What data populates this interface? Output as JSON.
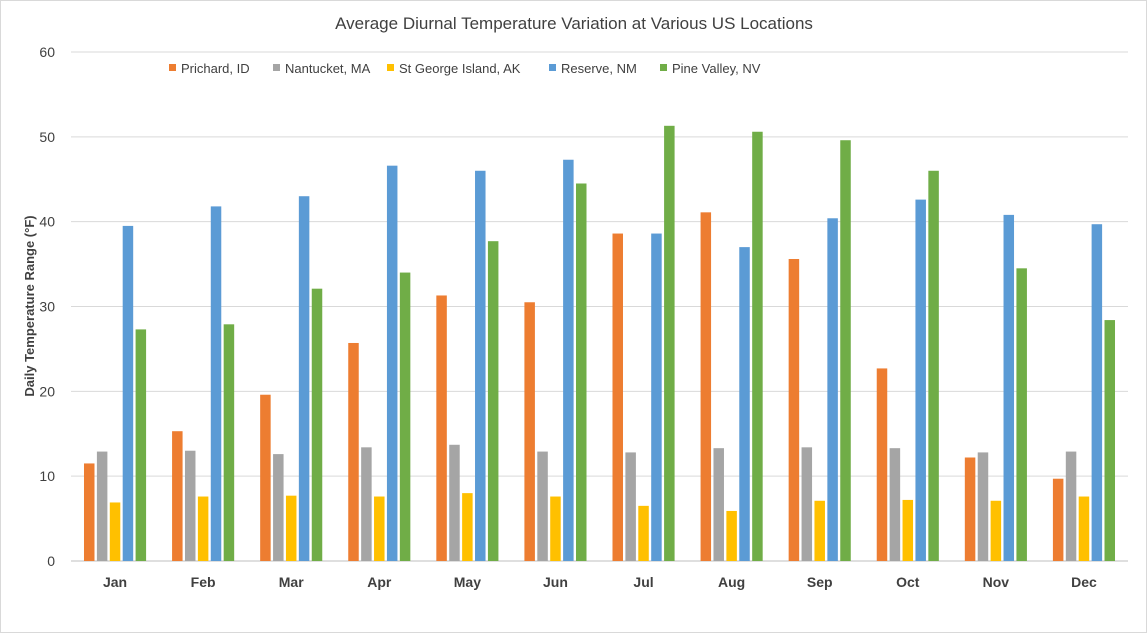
{
  "chart_data": {
    "type": "bar",
    "title": "Average Diurnal Temperature Variation at Various US Locations",
    "xlabel": "",
    "ylabel": "Daily Temperature Range (°F)",
    "ylim": [
      0,
      60
    ],
    "yticks": [
      0,
      10,
      20,
      30,
      40,
      50,
      60
    ],
    "grid": true,
    "legend_position": "top",
    "categories": [
      "Jan",
      "Feb",
      "Mar",
      "Apr",
      "May",
      "Jun",
      "Jul",
      "Aug",
      "Sep",
      "Oct",
      "Nov",
      "Dec"
    ],
    "series": [
      {
        "name": "Prichard, ID",
        "color": "#ED7D31",
        "values": [
          11.5,
          15.3,
          19.6,
          25.7,
          31.3,
          30.5,
          38.6,
          41.1,
          35.6,
          22.7,
          12.2,
          9.7
        ]
      },
      {
        "name": "Nantucket, MA",
        "color": "#A5A5A5",
        "values": [
          12.9,
          13.0,
          12.6,
          13.4,
          13.7,
          12.9,
          12.8,
          13.3,
          13.4,
          13.3,
          12.8,
          12.9
        ]
      },
      {
        "name": "St George Island, AK",
        "color": "#FFC000",
        "values": [
          6.9,
          7.6,
          7.7,
          7.6,
          8.0,
          7.6,
          6.5,
          5.9,
          7.1,
          7.2,
          7.1,
          7.6
        ]
      },
      {
        "name": "Reserve, NM",
        "color": "#5B9BD5",
        "values": [
          39.5,
          41.8,
          43.0,
          46.6,
          46.0,
          47.3,
          38.6,
          37.0,
          40.4,
          42.6,
          40.8,
          39.7
        ]
      },
      {
        "name": "Pine Valley, NV",
        "color": "#70AD47",
        "values": [
          27.3,
          27.9,
          32.1,
          34.0,
          37.7,
          44.5,
          51.3,
          50.6,
          49.6,
          46.0,
          34.5,
          28.4
        ]
      }
    ]
  }
}
